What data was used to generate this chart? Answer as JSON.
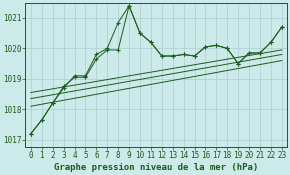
{
  "background_color": "#cceaea",
  "grid_color": "#aacece",
  "line_color": "#1a5c1a",
  "xlabel": "Graphe pression niveau de la mer (hPa)",
  "xlabel_fontsize": 6.5,
  "tick_fontsize": 5.5,
  "ylim": [
    1016.75,
    1021.5
  ],
  "xlim": [
    -0.5,
    23.5
  ],
  "yticks": [
    1017,
    1018,
    1019,
    1020,
    1021
  ],
  "xticks": [
    0,
    1,
    2,
    3,
    4,
    5,
    6,
    7,
    8,
    9,
    10,
    11,
    12,
    13,
    14,
    15,
    16,
    17,
    18,
    19,
    20,
    21,
    22,
    23
  ],
  "series1_x": [
    0,
    1,
    2,
    3,
    4,
    5,
    6,
    7,
    8,
    9,
    10,
    11,
    12,
    13,
    14,
    15,
    16,
    17,
    18,
    19,
    20,
    21,
    22,
    23
  ],
  "series1_y": [
    1017.2,
    1017.65,
    1018.2,
    1018.7,
    1019.1,
    1019.1,
    1019.8,
    1020.0,
    1020.85,
    1021.4,
    1020.5,
    1020.2,
    1019.75,
    1019.75,
    1019.8,
    1019.75,
    1020.05,
    1020.1,
    1020.0,
    1019.5,
    1019.85,
    1019.85,
    1020.2,
    1020.7
  ],
  "series2_x": [
    0,
    1,
    2,
    3,
    4,
    5,
    6,
    7,
    8,
    9,
    10,
    11,
    12,
    13,
    14,
    15,
    16,
    17,
    18,
    19,
    20,
    21,
    22,
    23
  ],
  "series2_y": [
    1017.2,
    1017.65,
    1018.2,
    1018.75,
    1019.05,
    1019.05,
    1019.65,
    1019.95,
    1019.95,
    1021.4,
    1020.5,
    1020.2,
    1019.75,
    1019.75,
    1019.8,
    1019.75,
    1020.05,
    1020.1,
    1020.0,
    1019.5,
    1019.85,
    1019.85,
    1020.2,
    1020.7
  ],
  "trend1_y": [
    1018.1,
    1019.6
  ],
  "trend2_y": [
    1018.35,
    1019.8
  ],
  "trend3_y": [
    1018.55,
    1019.95
  ]
}
